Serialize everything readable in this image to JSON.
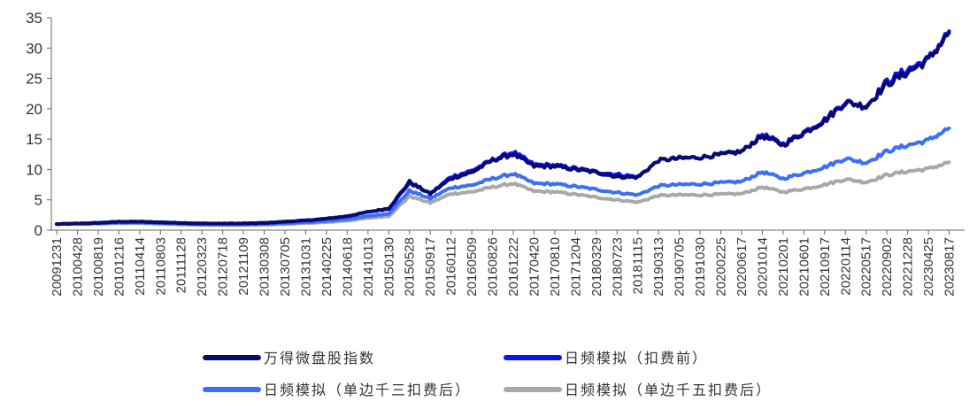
{
  "chart_data": {
    "type": "line",
    "title": "",
    "xlabel": "",
    "ylabel": "",
    "ylim": [
      0,
      35
    ],
    "yticks": [
      0,
      5,
      10,
      15,
      20,
      25,
      30,
      35
    ],
    "grid": false,
    "legend_position": "bottom",
    "x": [
      "20091231",
      "20100428",
      "20100819",
      "20101216",
      "20110414",
      "20110803",
      "20111128",
      "20120323",
      "20120718",
      "20121109",
      "20130308",
      "20130705",
      "20131031",
      "20140225",
      "20140618",
      "20141013",
      "20150130",
      "20150528",
      "20150917",
      "20160112",
      "20160509",
      "20160826",
      "20161222",
      "20170420",
      "20170810",
      "20171204",
      "20180329",
      "20180723",
      "20181115",
      "20190313",
      "20190705",
      "20191030",
      "20200225",
      "20200617",
      "20201014",
      "20210201",
      "20210601",
      "20210917",
      "20220114",
      "20220517",
      "20220902",
      "20221228",
      "20230425",
      "20230817"
    ],
    "series": [
      {
        "name": "万得微盘股指数",
        "color": "#0a0a6e",
        "values": [
          1.0,
          1.1,
          1.2,
          1.4,
          1.4,
          1.3,
          1.2,
          1.1,
          1.1,
          1.1,
          1.2,
          1.4,
          1.6,
          1.9,
          2.3,
          3.0,
          3.6,
          8.0,
          6.0,
          8.5,
          9.5,
          11.5,
          12.5,
          10.5,
          10.5,
          10.0,
          9.5,
          8.8,
          8.7,
          11.5,
          11.8,
          12.0,
          12.5,
          13.0,
          15.5,
          14.0,
          16.0,
          18.0,
          21.0,
          20.5,
          24.0,
          26.0,
          28.0,
          32.5
        ]
      },
      {
        "name": "日频模拟（扣费前）",
        "color": "#0a14f0",
        "values": [
          1.0,
          1.1,
          1.2,
          1.4,
          1.4,
          1.3,
          1.2,
          1.1,
          1.1,
          1.1,
          1.2,
          1.4,
          1.6,
          1.9,
          2.3,
          3.0,
          3.5,
          7.8,
          6.0,
          8.8,
          9.8,
          11.6,
          12.9,
          10.8,
          10.7,
          10.2,
          9.6,
          9.2,
          8.8,
          11.5,
          11.9,
          12.0,
          12.4,
          12.9,
          15.8,
          14.2,
          16.2,
          18.2,
          21.2,
          20.3,
          24.5,
          26.5,
          28.2,
          32.8
        ]
      },
      {
        "name": "日频模拟（单边千三扣费后）",
        "color": "#3a6ff7",
        "values": [
          1.0,
          1.05,
          1.1,
          1.25,
          1.25,
          1.15,
          1.05,
          0.95,
          0.95,
          0.95,
          1.0,
          1.15,
          1.3,
          1.5,
          1.8,
          2.3,
          2.7,
          6.5,
          5.2,
          7.0,
          7.4,
          8.5,
          9.3,
          7.7,
          7.6,
          7.2,
          6.7,
          6.2,
          5.8,
          7.3,
          7.5,
          7.6,
          7.8,
          8.0,
          9.6,
          8.5,
          9.4,
          10.4,
          11.8,
          11.1,
          13.0,
          14.0,
          14.8,
          16.8
        ]
      },
      {
        "name": "日频模拟（单边千五扣费后）",
        "color": "#a8a8a8",
        "values": [
          1.0,
          1.02,
          1.05,
          1.15,
          1.15,
          1.05,
          0.95,
          0.88,
          0.85,
          0.85,
          0.9,
          1.0,
          1.15,
          1.3,
          1.55,
          2.0,
          2.3,
          5.6,
          4.5,
          6.0,
          6.3,
          7.1,
          7.7,
          6.4,
          6.3,
          5.9,
          5.4,
          5.0,
          4.6,
          5.7,
          5.8,
          5.8,
          5.9,
          6.0,
          7.1,
          6.3,
          6.8,
          7.5,
          8.4,
          7.9,
          9.1,
          9.7,
          10.1,
          11.2
        ]
      }
    ]
  }
}
